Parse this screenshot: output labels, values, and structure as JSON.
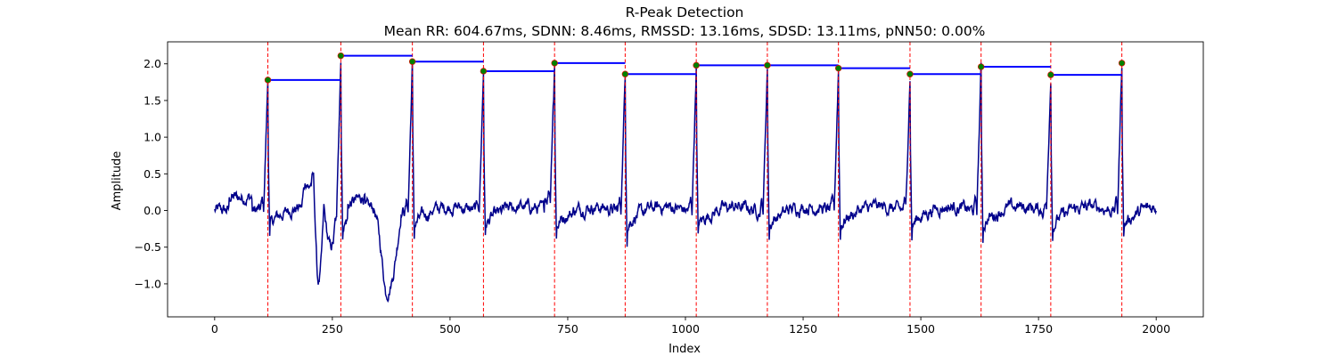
{
  "chart_data": {
    "type": "line",
    "title": "R-Peak Detection",
    "subtitle": "Mean RR: 604.67ms, SDNN: 8.46ms, RMSSD: 13.16ms, SDSD: 13.11ms, pNN50: 0.00%",
    "xlabel": "Index",
    "ylabel": "Amplitude",
    "xlim": [
      -100,
      2100
    ],
    "ylim": [
      -1.45,
      2.3
    ],
    "xticks": [
      0,
      250,
      500,
      750,
      1000,
      1250,
      1500,
      1750,
      2000
    ],
    "yticks": [
      -1.0,
      -0.5,
      0.0,
      0.5,
      1.0,
      1.5,
      2.0
    ],
    "grid": false,
    "colors": {
      "signal": "#00008b",
      "peak_marker_fill": "#008000",
      "peak_marker_edge": "#ff0000",
      "peak_line": "#ff0000",
      "rr_segment": "#0000ff"
    },
    "peaks": [
      {
        "x": 113,
        "y": 1.78
      },
      {
        "x": 268,
        "y": 2.11
      },
      {
        "x": 420,
        "y": 2.03
      },
      {
        "x": 571,
        "y": 1.9
      },
      {
        "x": 722,
        "y": 2.01
      },
      {
        "x": 872,
        "y": 1.86
      },
      {
        "x": 1023,
        "y": 1.98
      },
      {
        "x": 1174,
        "y": 1.98
      },
      {
        "x": 1325,
        "y": 1.94
      },
      {
        "x": 1477,
        "y": 1.86
      },
      {
        "x": 1628,
        "y": 1.96
      },
      {
        "x": 1776,
        "y": 1.85
      },
      {
        "x": 1927,
        "y": 2.01
      }
    ],
    "signal_range": [
      0,
      2000
    ]
  }
}
